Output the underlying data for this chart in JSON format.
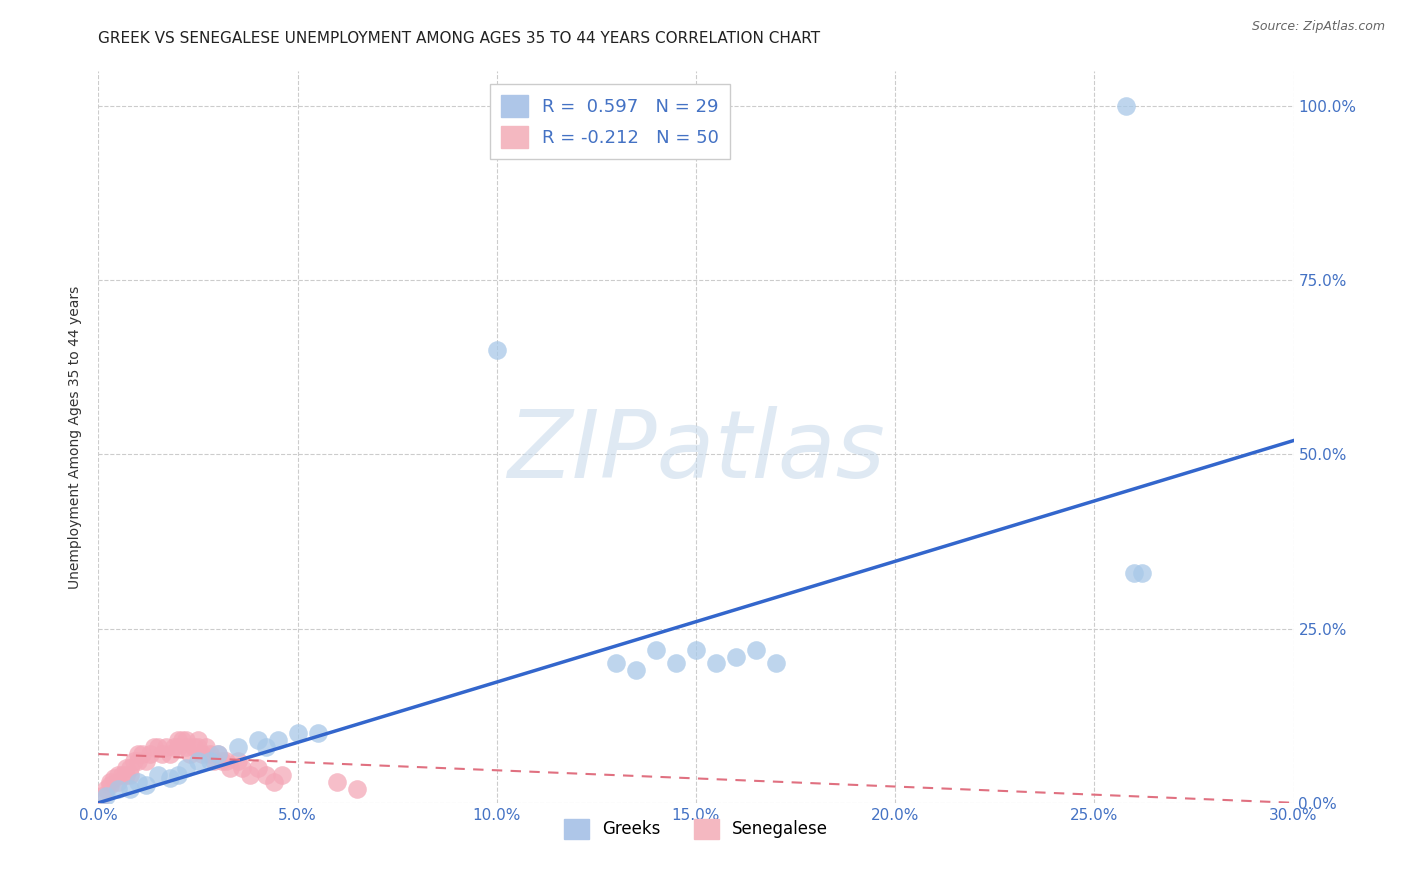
{
  "title": "GREEK VS SENEGALESE UNEMPLOYMENT AMONG AGES 35 TO 44 YEARS CORRELATION CHART",
  "source": "Source: ZipAtlas.com",
  "ylabel": "Unemployment Among Ages 35 to 44 years",
  "xlim": [
    0.0,
    0.3
  ],
  "ylim": [
    0.0,
    1.05
  ],
  "watermark": "ZIPatlas",
  "greek_color": "#a8c8e8",
  "senegalese_color": "#f4a8b8",
  "greek_line_color": "#3366cc",
  "senegalese_line_color": "#e07080",
  "grid_color": "#cccccc",
  "background_color": "#ffffff",
  "title_fontsize": 11,
  "axis_label_fontsize": 10,
  "tick_fontsize": 11,
  "right_tick_color": "#4472c4",
  "bottom_tick_color": "#4472c4",
  "greek_x": [
    0.002,
    0.005,
    0.008,
    0.01,
    0.012,
    0.015,
    0.018,
    0.02,
    0.022,
    0.025,
    0.028,
    0.03,
    0.035,
    0.04,
    0.042,
    0.045,
    0.05,
    0.055,
    0.1,
    0.13,
    0.135,
    0.14,
    0.145,
    0.15,
    0.155,
    0.16,
    0.165,
    0.17,
    0.26,
    0.262,
    0.258
  ],
  "greek_y": [
    0.01,
    0.02,
    0.02,
    0.03,
    0.025,
    0.04,
    0.035,
    0.04,
    0.05,
    0.06,
    0.06,
    0.07,
    0.08,
    0.09,
    0.08,
    0.09,
    0.1,
    0.1,
    0.65,
    0.2,
    0.19,
    0.22,
    0.2,
    0.22,
    0.2,
    0.21,
    0.22,
    0.2,
    0.33,
    0.33,
    1.0
  ],
  "senegalese_x": [
    0.001,
    0.002,
    0.003,
    0.003,
    0.004,
    0.005,
    0.005,
    0.006,
    0.007,
    0.007,
    0.008,
    0.008,
    0.009,
    0.01,
    0.01,
    0.011,
    0.012,
    0.013,
    0.014,
    0.015,
    0.016,
    0.017,
    0.018,
    0.019,
    0.02,
    0.02,
    0.021,
    0.022,
    0.022,
    0.023,
    0.024,
    0.025,
    0.025,
    0.026,
    0.027,
    0.028,
    0.029,
    0.03,
    0.031,
    0.032,
    0.033,
    0.035,
    0.036,
    0.038,
    0.04,
    0.042,
    0.044,
    0.046,
    0.06,
    0.065
  ],
  "senegalese_y": [
    0.01,
    0.02,
    0.03,
    0.025,
    0.035,
    0.04,
    0.03,
    0.04,
    0.05,
    0.04,
    0.05,
    0.04,
    0.06,
    0.06,
    0.07,
    0.07,
    0.06,
    0.07,
    0.08,
    0.08,
    0.07,
    0.08,
    0.07,
    0.08,
    0.09,
    0.08,
    0.09,
    0.08,
    0.09,
    0.07,
    0.08,
    0.09,
    0.08,
    0.07,
    0.08,
    0.07,
    0.06,
    0.07,
    0.06,
    0.06,
    0.05,
    0.06,
    0.05,
    0.04,
    0.05,
    0.04,
    0.03,
    0.04,
    0.03,
    0.02
  ],
  "greek_line_x": [
    0.0,
    0.3
  ],
  "greek_line_y": [
    0.0,
    0.52
  ],
  "sene_line_x": [
    0.0,
    0.3
  ],
  "sene_line_y": [
    0.07,
    0.0
  ],
  "yticks": [
    0.0,
    0.25,
    0.5,
    0.75,
    1.0
  ],
  "xticks": [
    0.0,
    0.05,
    0.1,
    0.15,
    0.2,
    0.25,
    0.3
  ]
}
